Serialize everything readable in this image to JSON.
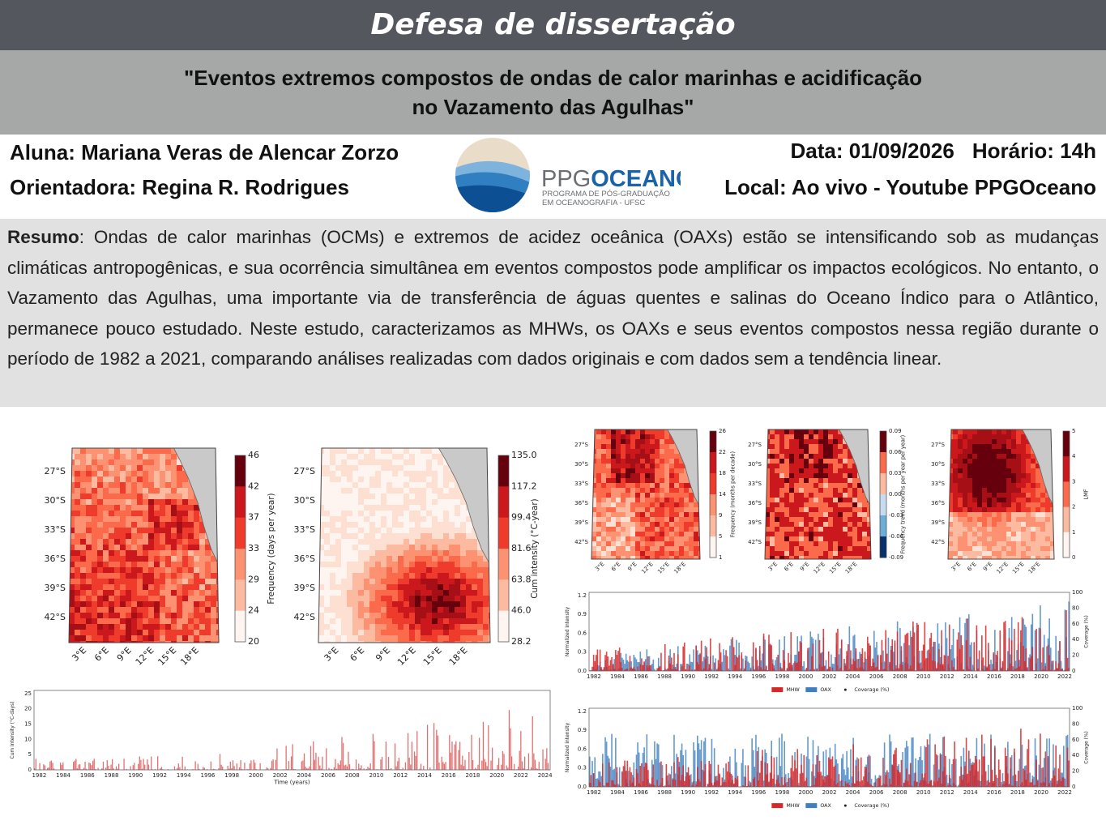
{
  "header": {
    "title": "Defesa de dissertação"
  },
  "subtitle": {
    "lines": [
      "\"Eventos extremos compostos de ondas de calor marinhas e acidificação",
      "no Vazamento das Agulhas\""
    ]
  },
  "info": {
    "student": "Aluna: Mariana Veras de Alencar Zorzo",
    "advisor": "Orientadora: Regina R. Rodrigues",
    "date": "Data: 01/09/2026",
    "time": "Horário: 14h",
    "place": "Local: Ao vivo - Youtube PPGOceano"
  },
  "logo": {
    "name_a": "PPG",
    "name_b": "OCEANO",
    "line1": "PROGRAMA DE PÓS-GRADUAÇÃO",
    "line2": "EM OCEANOGRAFIA - UFSC"
  },
  "abstract": {
    "label": "Resumo",
    "text": ": Ondas de calor marinhas (OCMs) e extremos de acidez oceânica (OAXs) estão se intensificando sob as mudanças climáticas antropogênicas, e sua ocorrência simultânea em eventos compostos pode amplificar os impactos ecológicos. No entanto, o Vazamento das Agulhas, uma importante via de transferência de águas quentes e salinas do Oceano Índico para o Atlântico, permanece pouco estudado. Neste estudo, caracterizamos as MHWs, os OAXs e seus eventos compostos nessa região durante o período de 1982 a 2021, comparando análises realizadas com dados originais e com dados sem a tendência linear."
  },
  "figures": {
    "map_frequency": {
      "lat": [
        "27°S",
        "30°S",
        "33°S",
        "36°S",
        "39°S",
        "42°S"
      ],
      "lon": [
        "3°E",
        "6°E",
        "9°E",
        "12°E",
        "15°E",
        "18°E"
      ],
      "cbar_ticks": [
        "46",
        "42",
        "37",
        "33",
        "29",
        "24",
        "20"
      ],
      "cbar_label": "Frequency (days per year)"
    },
    "map_intensity": {
      "lat": [
        "27°S",
        "30°S",
        "33°S",
        "36°S",
        "39°S",
        "42°S"
      ],
      "lon": [
        "3°E",
        "6°E",
        "9°E",
        "12°E",
        "15°E",
        "18°E"
      ],
      "cbar_ticks": [
        "135.0",
        "117.2",
        "99.4",
        "81.6",
        "63.8",
        "46.0",
        "28.2"
      ],
      "cbar_label": "Cum intensity (°C-year)"
    },
    "map_small_frequency": {
      "lat": [
        "27°S",
        "30°S",
        "33°S",
        "36°S",
        "39°S",
        "42°S"
      ],
      "lon": [
        "3°E",
        "6°E",
        "9°E",
        "12°E",
        "15°E",
        "18°E"
      ],
      "cbar_ticks": [
        "26",
        "22",
        "18",
        "14",
        "9",
        "5",
        "1"
      ],
      "cbar_label": "Frequency (months per decade)"
    },
    "map_small_trend": {
      "lat": [
        "27°S",
        "30°S",
        "33°S",
        "36°S",
        "39°S",
        "42°S"
      ],
      "lon": [
        "3°E",
        "6°E",
        "9°E",
        "12°E",
        "15°E",
        "18°E"
      ],
      "cbar_ticks": [
        "0.09",
        "0.06",
        "0.03",
        "0.00",
        "-0.03",
        "-0.06",
        "-0.09"
      ],
      "cbar_label": "Frequency trend (months per year per year)"
    },
    "map_small_lmf": {
      "lat": [
        "27°S",
        "30°S",
        "33°S",
        "36°S",
        "39°S",
        "42°S"
      ],
      "lon": [
        "3°E",
        "6°E",
        "9°E",
        "12°E",
        "15°E",
        "18°E"
      ],
      "cbar_ticks": [
        "5",
        "4",
        "3",
        "2",
        "1",
        "0"
      ],
      "cbar_label": "LMF"
    },
    "series_mhw": {
      "yticks": [
        "0",
        "5",
        "10",
        "15",
        "20",
        "25"
      ],
      "xticks": [
        "1982",
        "1984",
        "1986",
        "1988",
        "1990",
        "1992",
        "1994",
        "1996",
        "1998",
        "2000",
        "2002",
        "2004",
        "2006",
        "2008",
        "2010",
        "2012",
        "2014",
        "2016",
        "2018",
        "2020",
        "2022",
        "2024"
      ],
      "ylabel": "Cum intensity (°C-days)",
      "xlabel": "Time (years)"
    },
    "series_compound_original": {
      "yticks": [
        "0.0",
        "0.3",
        "0.6",
        "0.9",
        "1.2"
      ],
      "y2ticks": [
        "0",
        "20",
        "40",
        "60",
        "80",
        "100"
      ],
      "xticks": [
        "1982",
        "1984",
        "1986",
        "1988",
        "1990",
        "1992",
        "1994",
        "1996",
        "1998",
        "2000",
        "2002",
        "2004",
        "2006",
        "2008",
        "2010",
        "2012",
        "2014",
        "2016",
        "2018",
        "2020",
        "2022"
      ],
      "ylabel": "Normalized intensity",
      "y2label": "Coverage (%)",
      "legend": [
        "MHW",
        "OAX",
        "Coverage (%)"
      ]
    },
    "series_compound_detrended": {
      "yticks": [
        "0.0",
        "0.3",
        "0.6",
        "0.9",
        "1.2"
      ],
      "y2ticks": [
        "0",
        "20",
        "40",
        "60",
        "80",
        "100"
      ],
      "xticks": [
        "1982",
        "1984",
        "1986",
        "1988",
        "1990",
        "1992",
        "1994",
        "1996",
        "1998",
        "2000",
        "2002",
        "2004",
        "2006",
        "2008",
        "2010",
        "2012",
        "2014",
        "2016",
        "2018",
        "2020",
        "2022"
      ],
      "ylabel": "Normalized intensity",
      "y2label": "Coverage (%)",
      "legend": [
        "MHW",
        "OAX",
        "Coverage (%)"
      ]
    }
  }
}
